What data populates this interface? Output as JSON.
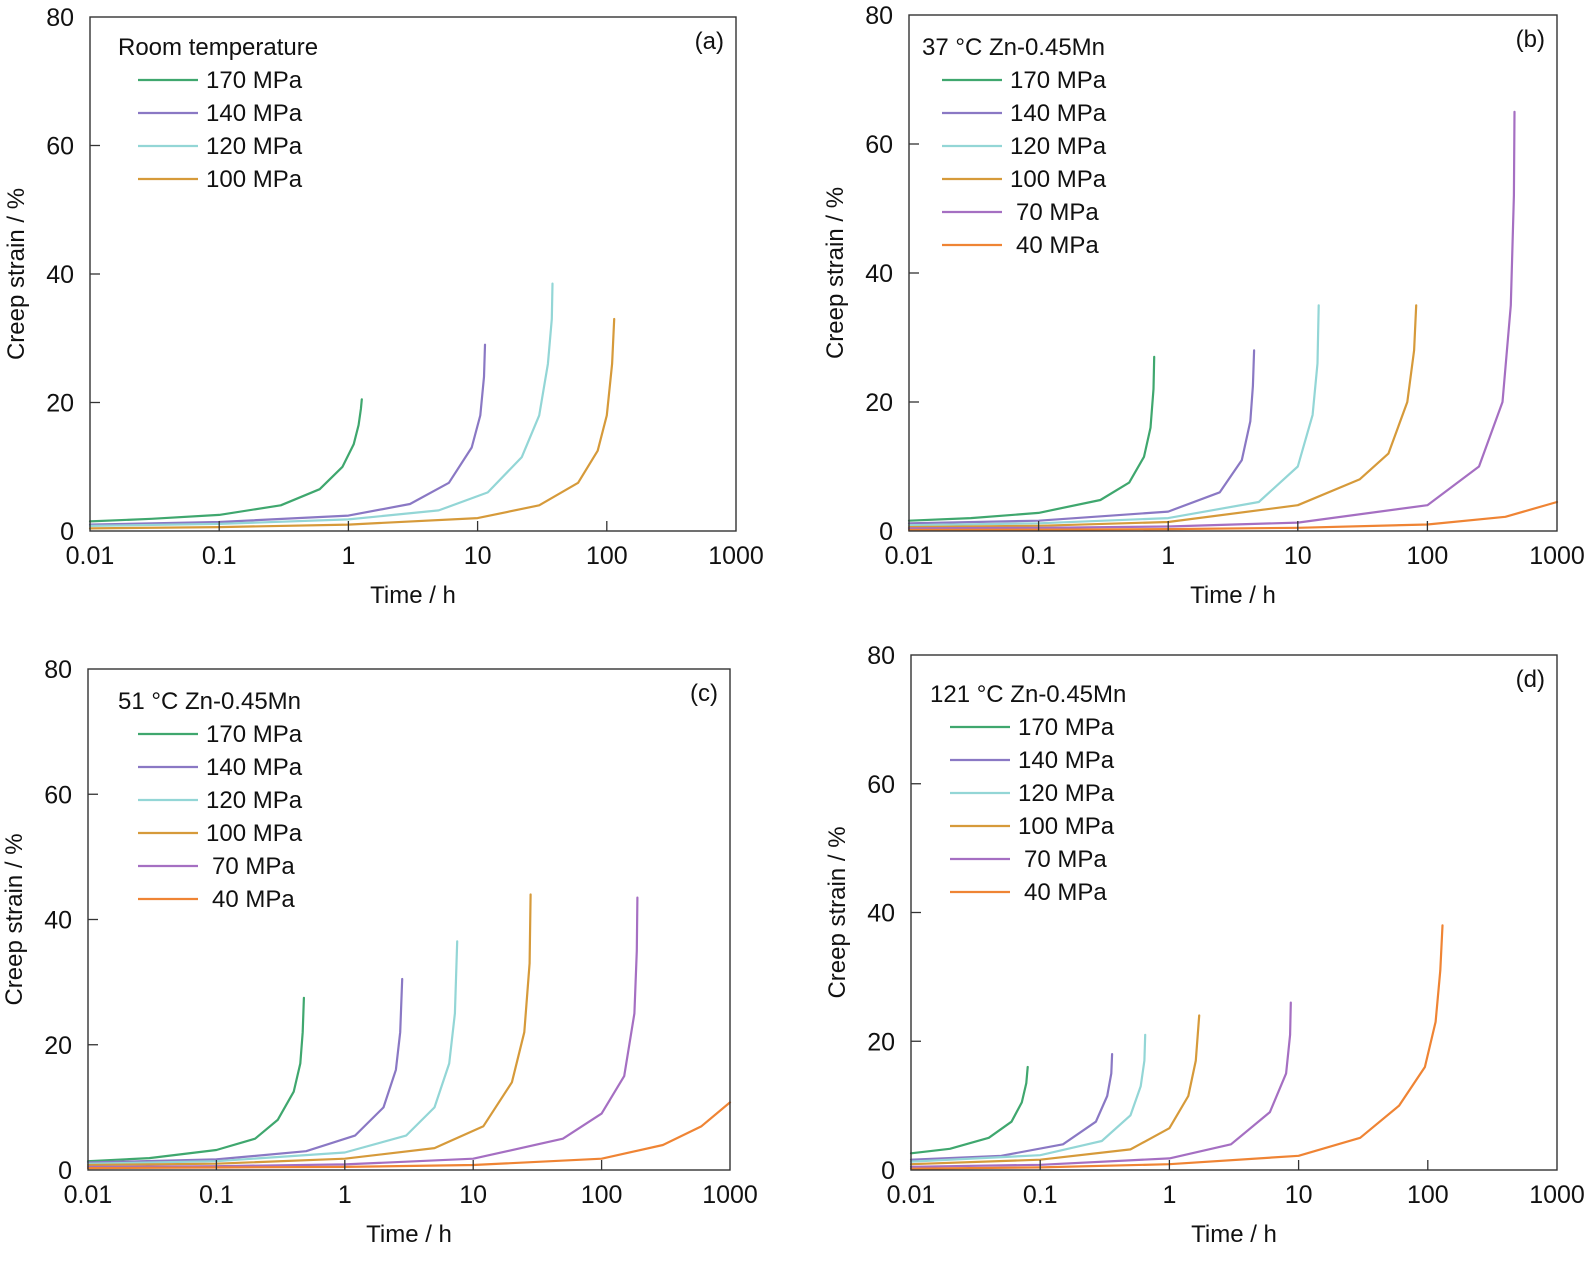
{
  "chart_data": [
    {
      "type": "line",
      "panel_tag": "(a)",
      "legend_title": "Room temperature",
      "legend_placement": "top-left",
      "xlabel": "Time / h",
      "ylabel": "Creep strain / %",
      "xscale": "log",
      "xlim": [
        0.01,
        1000
      ],
      "ylim": [
        0,
        80
      ],
      "xticks": [
        0.01,
        0.1,
        1,
        10,
        100,
        1000
      ],
      "xtick_labels": [
        "0.01",
        "0.1",
        "1",
        "10",
        "100",
        "1000"
      ],
      "yticks": [
        0,
        20,
        40,
        60,
        80
      ],
      "ytick_labels": [
        "0",
        "20",
        "40",
        "60",
        "80"
      ],
      "grid": false,
      "series": [
        {
          "name": "170 MPa",
          "color": "#3fa76e",
          "x": [
            0.01,
            0.03,
            0.1,
            0.3,
            0.6,
            0.9,
            1.1,
            1.2,
            1.25,
            1.27
          ],
          "y": [
            1.5,
            1.9,
            2.5,
            4.0,
            6.5,
            10.0,
            13.5,
            16.5,
            19.0,
            20.5
          ]
        },
        {
          "name": "140 MPa",
          "color": "#8a78c4",
          "x": [
            0.01,
            0.1,
            1,
            3,
            6,
            9,
            10.5,
            11.2,
            11.4
          ],
          "y": [
            1.0,
            1.4,
            2.4,
            4.2,
            7.5,
            13.0,
            18.0,
            24.0,
            29.0
          ]
        },
        {
          "name": "120 MPa",
          "color": "#93d6d6",
          "x": [
            0.01,
            0.1,
            1,
            5,
            12,
            22,
            30,
            35,
            37.5,
            38
          ],
          "y": [
            0.8,
            1.1,
            1.8,
            3.2,
            6.0,
            11.5,
            18.0,
            26.0,
            33.0,
            38.5
          ]
        },
        {
          "name": "100 MPa",
          "color": "#d69a3a",
          "x": [
            0.01,
            0.1,
            1,
            10,
            30,
            60,
            85,
            100,
            110,
            114
          ],
          "y": [
            0.4,
            0.6,
            1.0,
            2.0,
            4.0,
            7.5,
            12.5,
            18.0,
            26.0,
            33.0
          ]
        }
      ]
    },
    {
      "type": "line",
      "panel_tag": "(b)",
      "legend_title": "37 °C  Zn-0.45Mn",
      "legend_placement": "top-left",
      "xlabel": "Time / h",
      "ylabel": "Creep strain / %",
      "xscale": "log",
      "xlim": [
        0.01,
        1000
      ],
      "ylim": [
        0,
        80
      ],
      "xticks": [
        0.01,
        0.1,
        1,
        10,
        100,
        1000
      ],
      "xtick_labels": [
        "0.01",
        "0.1",
        "1",
        "10",
        "100",
        "1000"
      ],
      "yticks": [
        0,
        20,
        40,
        60,
        80
      ],
      "ytick_labels": [
        "0",
        "20",
        "40",
        "60",
        "80"
      ],
      "grid": false,
      "series": [
        {
          "name": "170 MPa",
          "color": "#3fa76e",
          "x": [
            0.01,
            0.03,
            0.1,
            0.3,
            0.5,
            0.65,
            0.73,
            0.77,
            0.78
          ],
          "y": [
            1.6,
            2.0,
            2.8,
            4.8,
            7.5,
            11.5,
            16.0,
            22.0,
            27.0
          ]
        },
        {
          "name": "140 MPa",
          "color": "#8a78c4",
          "x": [
            0.01,
            0.1,
            1,
            2.5,
            3.7,
            4.3,
            4.5,
            4.6
          ],
          "y": [
            1.2,
            1.6,
            3.0,
            6.0,
            11.0,
            17.0,
            22.5,
            28.0
          ]
        },
        {
          "name": "120 MPa",
          "color": "#93d6d6",
          "x": [
            0.01,
            0.1,
            1,
            5,
            10,
            13,
            14.2,
            14.5
          ],
          "y": [
            0.9,
            1.2,
            2.0,
            4.5,
            10.0,
            18.0,
            26.0,
            35.0
          ]
        },
        {
          "name": "100 MPa",
          "color": "#d69a3a",
          "x": [
            0.01,
            0.1,
            1,
            10,
            30,
            50,
            70,
            79,
            82
          ],
          "y": [
            0.6,
            0.8,
            1.4,
            4.0,
            8.0,
            12.0,
            20.0,
            28.0,
            35.0
          ]
        },
        {
          "name": "70 MPa",
          "color": "#a56fc2",
          "x": [
            0.01,
            0.1,
            1,
            10,
            100,
            250,
            380,
            440,
            465,
            470
          ],
          "y": [
            0.4,
            0.5,
            0.7,
            1.3,
            4.0,
            10.0,
            20.0,
            35.0,
            52.0,
            65.0
          ]
        },
        {
          "name": "40 MPa",
          "color": "#ef8434",
          "x": [
            0.01,
            0.1,
            1,
            10,
            100,
            400,
            1000
          ],
          "y": [
            0.15,
            0.2,
            0.3,
            0.5,
            1.0,
            2.2,
            4.5
          ]
        }
      ]
    },
    {
      "type": "line",
      "panel_tag": "(c)",
      "legend_title": "51 °C  Zn-0.45Mn",
      "legend_placement": "top-left",
      "xlabel": "Time / h",
      "ylabel": "Creep strain / %",
      "xscale": "log",
      "xlim": [
        0.01,
        1000
      ],
      "ylim": [
        0,
        80
      ],
      "xticks": [
        0.01,
        0.1,
        1,
        10,
        100,
        1000
      ],
      "xtick_labels": [
        "0.01",
        "0.1",
        "1",
        "10",
        "100",
        "1000"
      ],
      "yticks": [
        0,
        20,
        40,
        60,
        80
      ],
      "ytick_labels": [
        "0",
        "20",
        "40",
        "60",
        "80"
      ],
      "grid": false,
      "series": [
        {
          "name": "170 MPa",
          "color": "#3fa76e",
          "x": [
            0.01,
            0.03,
            0.1,
            0.2,
            0.3,
            0.4,
            0.45,
            0.47,
            0.48
          ],
          "y": [
            1.4,
            1.9,
            3.2,
            5.0,
            8.0,
            12.5,
            17.0,
            22.0,
            27.5
          ]
        },
        {
          "name": "140 MPa",
          "color": "#8a78c4",
          "x": [
            0.01,
            0.1,
            0.5,
            1.2,
            2.0,
            2.5,
            2.7,
            2.8
          ],
          "y": [
            1.2,
            1.7,
            3.0,
            5.5,
            10.0,
            16.0,
            22.0,
            30.5
          ]
        },
        {
          "name": "120 MPa",
          "color": "#93d6d6",
          "x": [
            0.01,
            0.1,
            1,
            3,
            5,
            6.5,
            7.2,
            7.5
          ],
          "y": [
            1.0,
            1.4,
            2.8,
            5.5,
            10.0,
            17.0,
            25.0,
            36.5
          ]
        },
        {
          "name": "100 MPa",
          "color": "#d69a3a",
          "x": [
            0.01,
            0.1,
            1,
            5,
            12,
            20,
            25,
            27.5,
            28
          ],
          "y": [
            0.8,
            1.0,
            1.8,
            3.5,
            7.0,
            14.0,
            22.0,
            33.0,
            44.0
          ]
        },
        {
          "name": "70 MPa",
          "color": "#a56fc2",
          "x": [
            0.01,
            0.1,
            1,
            10,
            50,
            100,
            150,
            180,
            188,
            190
          ],
          "y": [
            0.5,
            0.6,
            0.9,
            1.8,
            5.0,
            9.0,
            15.0,
            25.0,
            35.0,
            43.5
          ]
        },
        {
          "name": "40 MPa",
          "color": "#ef8434",
          "x": [
            0.01,
            0.1,
            1,
            10,
            100,
            300,
            600,
            1000
          ],
          "y": [
            0.3,
            0.4,
            0.5,
            0.8,
            1.8,
            4.0,
            7.0,
            10.8
          ]
        }
      ]
    },
    {
      "type": "line",
      "panel_tag": "(d)",
      "legend_title": "121 °C  Zn-0.45Mn",
      "legend_placement": "top-left",
      "xlabel": "Time / h",
      "ylabel": "Creep strain / %",
      "xscale": "log",
      "xlim": [
        0.01,
        1000
      ],
      "ylim": [
        0,
        80
      ],
      "xticks": [
        0.01,
        0.1,
        1,
        10,
        100,
        1000
      ],
      "xtick_labels": [
        "0.01",
        "0.1",
        "1",
        "10",
        "100",
        "1000"
      ],
      "yticks": [
        0,
        20,
        40,
        60,
        80
      ],
      "ytick_labels": [
        "0",
        "20",
        "40",
        "60",
        "80"
      ],
      "grid": false,
      "series": [
        {
          "name": "170 MPa",
          "color": "#3fa76e",
          "x": [
            0.01,
            0.02,
            0.04,
            0.06,
            0.072,
            0.078,
            0.08
          ],
          "y": [
            2.6,
            3.3,
            5.0,
            7.5,
            10.5,
            13.5,
            16.0
          ]
        },
        {
          "name": "140 MPa",
          "color": "#8a78c4",
          "x": [
            0.01,
            0.05,
            0.15,
            0.27,
            0.33,
            0.355,
            0.36
          ],
          "y": [
            1.6,
            2.2,
            4.0,
            7.5,
            11.5,
            15.0,
            18.0
          ]
        },
        {
          "name": "120 MPa",
          "color": "#93d6d6",
          "x": [
            0.01,
            0.1,
            0.3,
            0.5,
            0.6,
            0.64,
            0.65
          ],
          "y": [
            1.3,
            2.3,
            4.5,
            8.5,
            13.0,
            17.0,
            21.0
          ]
        },
        {
          "name": "100 MPa",
          "color": "#d69a3a",
          "x": [
            0.01,
            0.1,
            0.5,
            1.0,
            1.4,
            1.6,
            1.7
          ],
          "y": [
            0.9,
            1.6,
            3.2,
            6.5,
            11.5,
            17.0,
            24.0
          ]
        },
        {
          "name": "70 MPa",
          "color": "#a56fc2",
          "x": [
            0.01,
            0.1,
            1,
            3,
            6,
            8,
            8.6,
            8.7
          ],
          "y": [
            0.5,
            0.8,
            1.8,
            4.0,
            9.0,
            15.0,
            21.0,
            26.0
          ]
        },
        {
          "name": "40 MPa",
          "color": "#ef8434",
          "x": [
            0.01,
            0.1,
            1,
            10,
            30,
            60,
            95,
            115,
            125,
            130
          ],
          "y": [
            0.2,
            0.4,
            0.9,
            2.2,
            5.0,
            10.0,
            16.0,
            23.0,
            31.0,
            38.0
          ]
        }
      ]
    }
  ]
}
